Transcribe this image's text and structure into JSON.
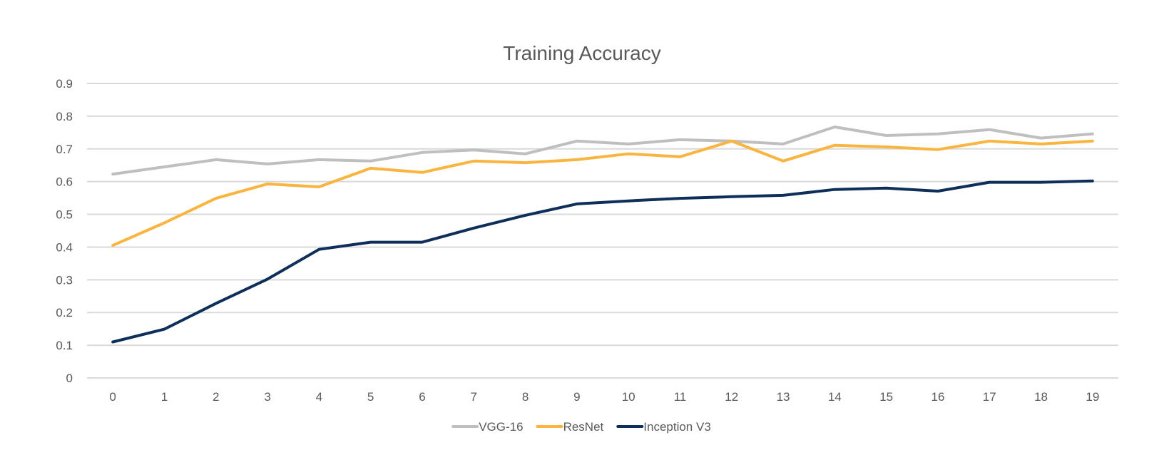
{
  "chart_data": {
    "type": "line",
    "title": "Training Accuracy",
    "xlabel": "",
    "ylabel": "",
    "x": [
      "0",
      "1",
      "2",
      "3",
      "4",
      "5",
      "6",
      "7",
      "8",
      "9",
      "10",
      "11",
      "12",
      "13",
      "14",
      "15",
      "16",
      "17",
      "18",
      "19"
    ],
    "ylim": [
      0,
      0.9
    ],
    "yticks": [
      "0",
      "0.1",
      "0.2",
      "0.3",
      "0.4",
      "0.5",
      "0.6",
      "0.7",
      "0.8",
      "0.9"
    ],
    "grid": true,
    "legend_position": "bottom",
    "series": [
      {
        "name": "VGG-16",
        "color": "#bfbfbf",
        "values": [
          0.623,
          0.645,
          0.667,
          0.654,
          0.667,
          0.663,
          0.689,
          0.697,
          0.685,
          0.724,
          0.715,
          0.728,
          0.724,
          0.715,
          0.767,
          0.741,
          0.746,
          0.759,
          0.733,
          0.746
        ]
      },
      {
        "name": "ResNet",
        "color": "#f9b540",
        "values": [
          0.405,
          0.474,
          0.549,
          0.593,
          0.584,
          0.641,
          0.628,
          0.663,
          0.658,
          0.667,
          0.685,
          0.676,
          0.724,
          0.663,
          0.711,
          0.706,
          0.698,
          0.724,
          0.715,
          0.724
        ]
      },
      {
        "name": "Inception V3",
        "color": "#0d2f5a",
        "values": [
          0.11,
          0.149,
          0.228,
          0.302,
          0.393,
          0.415,
          0.415,
          0.458,
          0.497,
          0.532,
          0.541,
          0.549,
          0.554,
          0.558,
          0.576,
          0.58,
          0.571,
          0.598,
          0.598,
          0.602
        ]
      }
    ]
  }
}
